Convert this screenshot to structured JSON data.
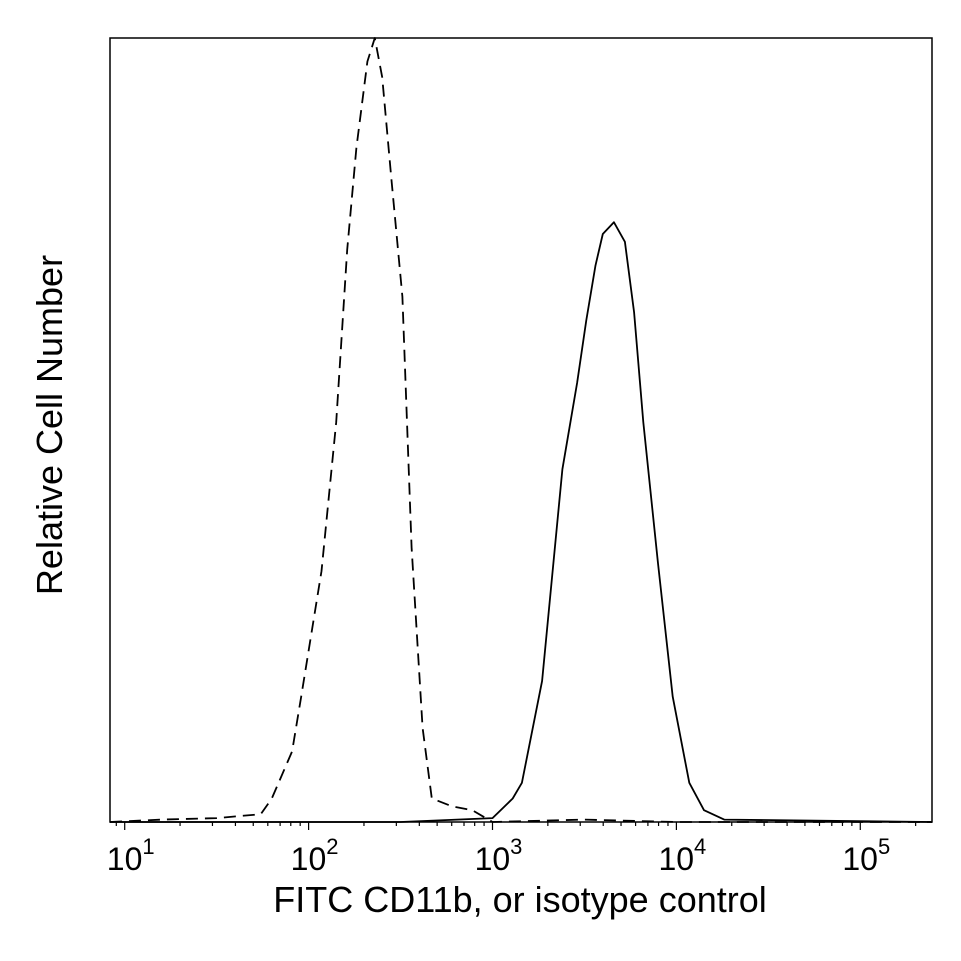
{
  "chart_data": {
    "type": "line",
    "title": "",
    "xlabel": "FITC CD11b, or isotype control",
    "ylabel": "Relative Cell Number",
    "xscale": "log10",
    "xlim_log10": [
      0.92,
      5.39
    ],
    "ylim": [
      0,
      100
    ],
    "grid": false,
    "legend": "none",
    "x_ticks": [
      {
        "base": "10",
        "exp": "1",
        "log10": 1
      },
      {
        "base": "10",
        "exp": "2",
        "log10": 2
      },
      {
        "base": "10",
        "exp": "3",
        "log10": 3
      },
      {
        "base": "10",
        "exp": "4",
        "log10": 4
      },
      {
        "base": "10",
        "exp": "5",
        "log10": 5
      }
    ],
    "series": [
      {
        "name": "isotype control",
        "style": "dashed",
        "color": "#000000",
        "x_log10": [
          0.92,
          1.2,
          1.5,
          1.74,
          1.8,
          1.91,
          1.96,
          2.07,
          2.15,
          2.21,
          2.26,
          2.32,
          2.36,
          2.4,
          2.45,
          2.51,
          2.56,
          2.62,
          2.67,
          2.78,
          2.89,
          3.0,
          3.5,
          4.0,
          5.39
        ],
        "values": [
          0,
          0.3,
          0.5,
          1,
          3,
          9,
          16,
          32,
          51,
          73,
          86,
          97,
          100,
          95,
          82,
          67,
          35,
          12,
          3,
          2,
          1.5,
          0,
          0.3,
          0,
          0
        ]
      },
      {
        "name": "FITC CD11b",
        "style": "solid",
        "color": "#000000",
        "x_log10": [
          0.92,
          2.5,
          3.0,
          3.11,
          3.16,
          3.27,
          3.38,
          3.46,
          3.51,
          3.56,
          3.6,
          3.66,
          3.72,
          3.77,
          3.82,
          3.9,
          3.98,
          4.07,
          4.15,
          4.26,
          5.39
        ],
        "values": [
          0,
          0,
          0.5,
          3,
          5,
          18,
          45,
          56,
          64,
          71,
          75,
          76.5,
          74,
          65,
          51,
          33,
          16,
          5,
          1.5,
          0.3,
          0
        ]
      }
    ]
  }
}
